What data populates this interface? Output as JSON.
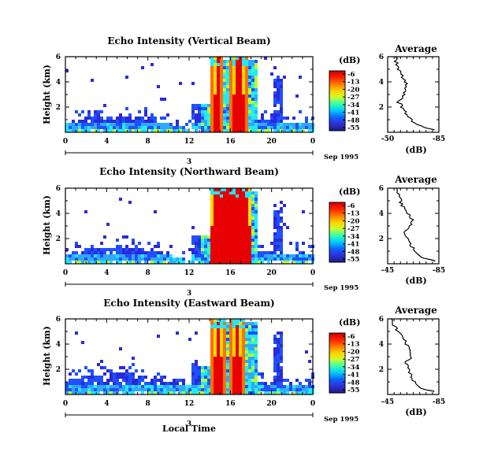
{
  "figure": {
    "xaxis_label": "Local Time",
    "time_ticks": [
      "0",
      "4",
      "8",
      "12",
      "16",
      "20",
      "0"
    ],
    "day_marker": "3",
    "date_label": "Sep 1995",
    "y_label": "Height (km)",
    "y_ticks": [
      "2",
      "4",
      "6"
    ],
    "colorbar_unit": "(dB)",
    "colorbar_ticks": [
      "-6",
      "-13",
      "-20",
      "-27",
      "-34",
      "-41",
      "-48",
      "-55"
    ],
    "colorbar_colors": [
      "#cc0000",
      "#ff2000",
      "#ff7a00",
      "#ffd000",
      "#c8ff30",
      "#30ffb0",
      "#00c8ff",
      "#1060ff",
      "#3030d0",
      "#1a1a90"
    ],
    "profile_title": "Average",
    "profile_xlabel": "(dB)"
  },
  "panels": [
    {
      "title": "Echo Intensity (Vertical Beam)",
      "profile_xticks": [
        "-50",
        "-85"
      ]
    },
    {
      "title": "Echo Intensity (Northward Beam)",
      "profile_xticks": [
        "-45",
        "-85"
      ]
    },
    {
      "title": "Echo Intensity (Eastward Beam)",
      "profile_xticks": [
        "-45",
        "-85"
      ]
    }
  ],
  "chart_data": [
    {
      "type": "heatmap",
      "title": "Echo Intensity (Vertical Beam)",
      "xlabel": "Local Time",
      "ylabel": "Height (km)",
      "xlim": [
        0,
        24
      ],
      "ylim": [
        0,
        6
      ],
      "zlim": [
        -55,
        -6
      ],
      "zunit": "dB",
      "strong_echo_intervals_hours": [
        [
          14.0,
          15.2
        ],
        [
          15.8,
          17.6
        ]
      ],
      "profile": {
        "title": "Average",
        "xlabel": "(dB)",
        "xlim": [
          -50,
          -85
        ],
        "ylim": [
          0,
          6
        ],
        "height_km": [
          0.2,
          0.5,
          1.0,
          1.5,
          2.0,
          2.5,
          3.0,
          3.5,
          4.0,
          4.5,
          5.0,
          5.5,
          6.0
        ],
        "mean_db": [
          -82,
          -72,
          -66,
          -62,
          -60,
          -57,
          -61,
          -63,
          -62,
          -60,
          -58,
          -56,
          -55
        ]
      }
    },
    {
      "type": "heatmap",
      "title": "Echo Intensity (Northward Beam)",
      "xlabel": "Local Time",
      "ylabel": "Height (km)",
      "xlim": [
        0,
        24
      ],
      "ylim": [
        0,
        6
      ],
      "zlim": [
        -55,
        -6
      ],
      "zunit": "dB",
      "strong_echo_intervals_hours": [
        [
          13.8,
          18.0
        ]
      ],
      "profile": {
        "title": "Average",
        "xlabel": "(dB)",
        "xlim": [
          -45,
          -85
        ],
        "ylim": [
          0,
          6
        ],
        "height_km": [
          0.2,
          0.5,
          1.0,
          1.5,
          2.0,
          2.5,
          3.0,
          3.5,
          4.0,
          4.5,
          5.0,
          5.5,
          6.0
        ],
        "mean_db": [
          -82,
          -72,
          -66,
          -63,
          -62,
          -58,
          -62,
          -64,
          -61,
          -57,
          -55,
          -53,
          -52
        ]
      }
    },
    {
      "type": "heatmap",
      "title": "Echo Intensity (Eastward Beam)",
      "xlabel": "Local Time",
      "ylabel": "Height (km)",
      "xlim": [
        0,
        24
      ],
      "ylim": [
        0,
        6
      ],
      "zlim": [
        -55,
        -6
      ],
      "zunit": "dB",
      "strong_echo_intervals_hours": [
        [
          14.0,
          15.3
        ],
        [
          15.8,
          17.2
        ]
      ],
      "profile": {
        "title": "Average",
        "xlabel": "(dB)",
        "xlim": [
          -45,
          -85
        ],
        "ylim": [
          0,
          6
        ],
        "height_km": [
          0.2,
          0.5,
          1.0,
          1.5,
          2.0,
          2.5,
          3.0,
          3.5,
          4.0,
          4.5,
          5.0,
          5.5,
          6.0
        ],
        "mean_db": [
          -82,
          -72,
          -66,
          -63,
          -62,
          -59,
          -63,
          -64,
          -60,
          -56,
          -53,
          -50,
          -48
        ]
      }
    }
  ]
}
